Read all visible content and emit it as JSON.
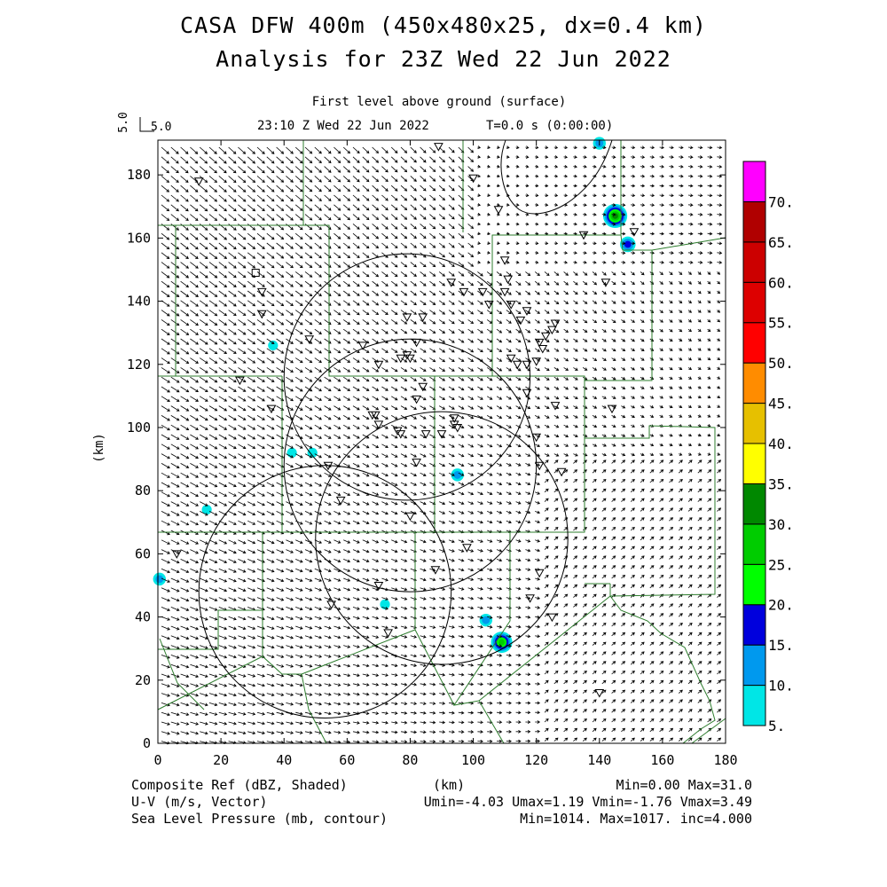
{
  "header": {
    "title_line1": "CASA DFW 400m (450x480x25, dx=0.4 km)",
    "title_line2": "Analysis for 23Z Wed 22 Jun 2022",
    "level": "First level above ground (surface)",
    "valid_time": "23:10 Z Wed 22 Jun 2022",
    "forecast_time": "T=0.0 s (0:00:00)"
  },
  "vector_scale": {
    "label": "5.0",
    "rotated_label": "5.0"
  },
  "axes": {
    "x_unit": "(km)",
    "y_unit": "(km)",
    "x_ticks": [
      "0",
      "20",
      "40",
      "60",
      "80",
      "100",
      "120",
      "140",
      "160",
      "180"
    ],
    "y_ticks": [
      "0",
      "20",
      "40",
      "60",
      "80",
      "100",
      "120",
      "140",
      "160",
      "180"
    ],
    "x_range": [
      0,
      180
    ],
    "y_range": [
      0,
      191
    ]
  },
  "colorbar": {
    "labels": [
      "5.",
      "10.",
      "15.",
      "20.",
      "25.",
      "30.",
      "35.",
      "40.",
      "45.",
      "50.",
      "55.",
      "60.",
      "65.",
      "70."
    ],
    "colors": [
      "#00e6e6",
      "#0099ee",
      "#0000dd",
      "#00ff00",
      "#00cc00",
      "#008800",
      "#ffff00",
      "#e6c000",
      "#ff8c00",
      "#ff0000",
      "#dd0000",
      "#cc0000",
      "#b00000",
      "#ff00ff"
    ]
  },
  "footer": {
    "left1": "Composite Ref (dBZ, Shaded)",
    "left2": "U-V (m/s, Vector)",
    "left3": "Sea Level Pressure (mb, contour)",
    "mid1": "(km)",
    "right1": "Min=0.00 Max=31.0",
    "right2": "Umin=-4.03 Umax=1.19 Vmin=-1.76 Vmax=3.49",
    "right3": "Min=1014. Max=1017. inc=4.000"
  },
  "map_data": {
    "radar_rings_km": [
      {
        "cx": 79,
        "cy": 116,
        "r": 39
      },
      {
        "cx": 80,
        "cy": 88,
        "r": 40
      },
      {
        "cx": 90,
        "cy": 65,
        "r": 40
      },
      {
        "cx": 53,
        "cy": 48,
        "r": 40
      }
    ],
    "echoes_km": [
      {
        "x": 145,
        "y": 167,
        "dbz": 31
      },
      {
        "x": 149,
        "y": 158,
        "dbz": 15
      },
      {
        "x": 109,
        "y": 32,
        "dbz": 28
      },
      {
        "x": 104,
        "y": 39,
        "dbz": 12
      },
      {
        "x": 95,
        "y": 85,
        "dbz": 10
      },
      {
        "x": 0.5,
        "y": 52,
        "dbz": 14
      },
      {
        "x": 15.5,
        "y": 74,
        "dbz": 8
      },
      {
        "x": 36.5,
        "y": 126,
        "dbz": 8
      },
      {
        "x": 42.5,
        "y": 92,
        "dbz": 7
      },
      {
        "x": 49,
        "y": 92,
        "dbz": 6
      },
      {
        "x": 72,
        "y": 44,
        "dbz": 9
      },
      {
        "x": 140,
        "y": 190,
        "dbz": 14
      }
    ],
    "stations_km": [
      [
        13,
        178
      ],
      [
        33,
        143
      ],
      [
        33,
        136
      ],
      [
        48,
        128
      ],
      [
        26,
        115
      ],
      [
        36,
        106
      ],
      [
        58,
        77
      ],
      [
        55,
        44
      ],
      [
        6,
        60
      ],
      [
        65,
        126
      ],
      [
        70,
        120
      ],
      [
        77,
        122
      ],
      [
        79,
        123
      ],
      [
        82,
        127
      ],
      [
        84,
        113
      ],
      [
        76,
        99
      ],
      [
        77,
        98
      ],
      [
        85,
        98
      ],
      [
        82,
        89
      ],
      [
        69,
        104
      ],
      [
        68,
        104
      ],
      [
        70,
        101
      ],
      [
        82,
        109
      ],
      [
        70,
        50
      ],
      [
        73,
        35
      ],
      [
        80,
        72
      ],
      [
        89,
        189
      ],
      [
        100,
        179
      ],
      [
        108,
        169
      ],
      [
        110,
        153
      ],
      [
        111,
        147
      ],
      [
        110,
        143
      ],
      [
        93,
        146
      ],
      [
        97,
        143
      ],
      [
        105,
        139
      ],
      [
        112,
        139
      ],
      [
        117,
        137
      ],
      [
        115,
        134
      ],
      [
        123,
        129
      ],
      [
        125,
        131
      ],
      [
        126,
        133
      ],
      [
        121,
        127
      ],
      [
        120,
        121
      ],
      [
        122,
        125
      ],
      [
        112,
        122
      ],
      [
        114,
        120
      ],
      [
        117,
        120
      ],
      [
        117,
        111
      ],
      [
        126,
        107
      ],
      [
        144,
        106
      ],
      [
        120,
        97
      ],
      [
        121,
        88
      ],
      [
        128,
        86
      ],
      [
        121,
        54
      ],
      [
        118,
        46
      ],
      [
        125,
        40
      ],
      [
        94,
        103
      ],
      [
        94,
        101
      ],
      [
        95,
        100
      ],
      [
        90,
        98
      ],
      [
        88,
        55
      ],
      [
        98,
        62
      ],
      [
        140,
        16
      ],
      [
        135,
        161
      ],
      [
        151,
        162
      ],
      [
        142,
        146
      ],
      [
        79,
        135
      ],
      [
        84,
        135
      ],
      [
        80,
        122
      ],
      [
        54,
        88
      ],
      [
        103,
        143
      ]
    ],
    "box_station_km": [
      31,
      149
    ]
  }
}
